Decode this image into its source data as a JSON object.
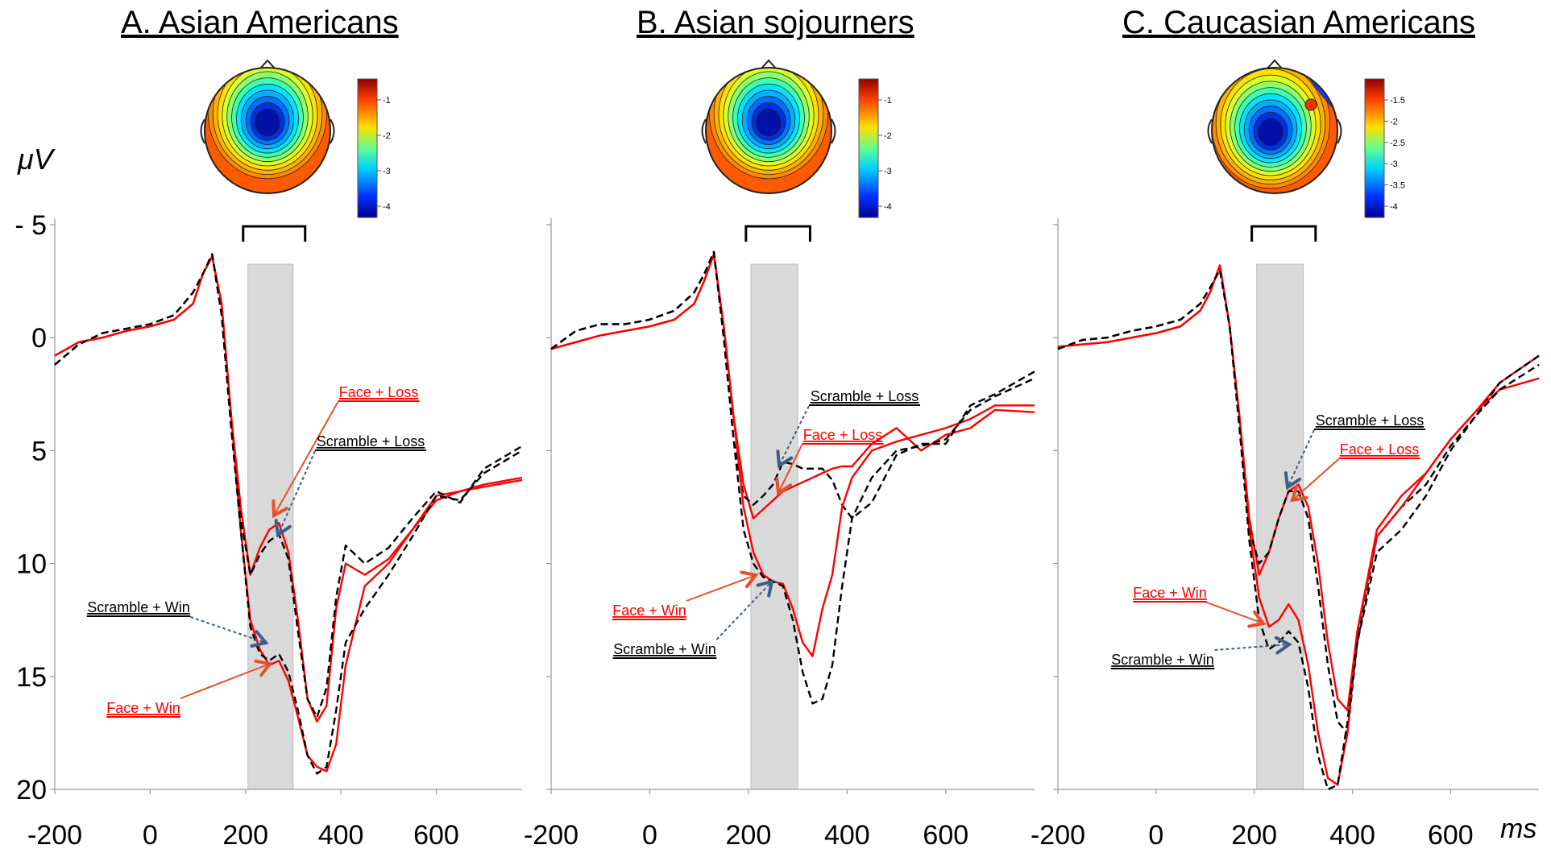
{
  "figure": {
    "y_unit": "μV",
    "x_unit": "ms",
    "y_ticks": [
      "- 5",
      "0",
      "5",
      "10",
      "15",
      "20"
    ],
    "x_ticks": [
      "-200",
      "0",
      "200",
      "400",
      "600"
    ]
  },
  "colors": {
    "face": "#ff0000",
    "scramble": "#000000",
    "window": "#d9d9d9",
    "arrow_face": "#e8502a",
    "arrow_scramble": "#3f5d86"
  },
  "chart_data": [
    {
      "type": "line",
      "panel": "A",
      "title": "A. Asian Americans",
      "xlim": [
        -200,
        780
      ],
      "ylim": [
        -5,
        20
      ],
      "y_inverted": true,
      "shaded_window_ms": [
        205,
        300
      ],
      "bracket_ms": [
        195,
        325
      ],
      "scalp_map_colorbar_ticks": [
        "-1",
        "-2",
        "-3",
        "-4"
      ],
      "annotations": [
        {
          "text": "Face + Loss",
          "color": "red"
        },
        {
          "text": "Scramble + Loss",
          "color": "black"
        },
        {
          "text": "Scramble + Win",
          "color": "black"
        },
        {
          "text": "Face + Win",
          "color": "red"
        }
      ],
      "series": [
        {
          "condition": "Face + Loss",
          "color": "red",
          "dash": "solid",
          "x": [
            -200,
            -150,
            -100,
            -50,
            0,
            50,
            90,
            110,
            130,
            150,
            170,
            190,
            210,
            230,
            250,
            270,
            290,
            310,
            330,
            350,
            370,
            390,
            410,
            450,
            500,
            550,
            600,
            650,
            700,
            780
          ],
          "y": [
            0.8,
            0.2,
            0.0,
            -0.3,
            -0.5,
            -0.8,
            -1.5,
            -2.8,
            -3.6,
            -1.5,
            3.5,
            7.5,
            10.5,
            9.3,
            8.5,
            8.2,
            9.5,
            12.5,
            16.0,
            17.0,
            16.3,
            12.0,
            10.0,
            10.5,
            9.8,
            8.5,
            7.0,
            6.8,
            6.5,
            6.2
          ]
        },
        {
          "condition": "Scramble + Loss",
          "color": "black",
          "dash": "dashed",
          "x": [
            -200,
            -150,
            -100,
            -50,
            0,
            50,
            90,
            110,
            130,
            150,
            170,
            190,
            210,
            230,
            250,
            270,
            290,
            310,
            330,
            350,
            370,
            390,
            410,
            450,
            500,
            550,
            600,
            650,
            700,
            780
          ],
          "y": [
            1.2,
            0.3,
            -0.2,
            -0.4,
            -0.6,
            -1.0,
            -2.0,
            -2.8,
            -3.7,
            -1.0,
            4.0,
            8.0,
            10.5,
            9.6,
            9.0,
            8.7,
            9.8,
            13.0,
            16.0,
            16.8,
            15.5,
            11.5,
            9.2,
            10.0,
            9.3,
            8.0,
            6.8,
            7.3,
            5.8,
            4.8
          ]
        },
        {
          "condition": "Face + Win",
          "color": "red",
          "dash": "solid",
          "x": [
            -200,
            -150,
            -100,
            -50,
            0,
            50,
            90,
            110,
            130,
            150,
            170,
            190,
            210,
            230,
            250,
            270,
            290,
            310,
            330,
            350,
            370,
            390,
            410,
            450,
            500,
            550,
            600,
            650,
            700,
            780
          ],
          "y": [
            0.8,
            0.2,
            0.0,
            -0.3,
            -0.5,
            -0.8,
            -1.5,
            -2.8,
            -3.6,
            -1.5,
            3.5,
            8.5,
            12.5,
            13.8,
            14.5,
            14.3,
            15.2,
            16.8,
            18.5,
            19.0,
            19.2,
            18.0,
            14.5,
            11.0,
            10.0,
            8.5,
            7.2,
            6.8,
            6.6,
            6.3
          ]
        },
        {
          "condition": "Scramble + Win",
          "color": "black",
          "dash": "dashed",
          "x": [
            -200,
            -150,
            -100,
            -50,
            0,
            50,
            90,
            110,
            130,
            150,
            170,
            190,
            210,
            230,
            250,
            270,
            290,
            310,
            330,
            350,
            370,
            390,
            410,
            450,
            500,
            550,
            600,
            650,
            700,
            780
          ],
          "y": [
            1.2,
            0.3,
            -0.2,
            -0.4,
            -0.6,
            -1.0,
            -2.0,
            -2.8,
            -3.7,
            -1.0,
            4.0,
            8.5,
            12.8,
            14.0,
            14.3,
            14.0,
            14.8,
            16.5,
            18.5,
            19.3,
            19.0,
            16.5,
            13.5,
            12.0,
            10.5,
            8.8,
            7.0,
            7.2,
            6.0,
            5.0
          ]
        }
      ]
    },
    {
      "type": "line",
      "panel": "B",
      "title": "B. Asian sojourners",
      "xlim": [
        -200,
        780
      ],
      "ylim": [
        -5,
        20
      ],
      "y_inverted": true,
      "shaded_window_ms": [
        205,
        300
      ],
      "bracket_ms": [
        195,
        325
      ],
      "scalp_map_colorbar_ticks": [
        "-1",
        "-2",
        "-3",
        "-4"
      ],
      "annotations": [
        {
          "text": "Scramble + Loss",
          "color": "black"
        },
        {
          "text": "Face + Loss",
          "color": "red"
        },
        {
          "text": "Face + Win",
          "color": "red"
        },
        {
          "text": "Scramble + Win",
          "color": "black"
        }
      ],
      "series": [
        {
          "condition": "Face + Loss",
          "color": "red",
          "dash": "solid",
          "x": [
            -200,
            -150,
            -100,
            -50,
            0,
            50,
            90,
            110,
            130,
            150,
            170,
            190,
            210,
            230,
            250,
            270,
            290,
            310,
            330,
            350,
            370,
            390,
            410,
            450,
            500,
            550,
            600,
            650,
            700,
            780
          ],
          "y": [
            0.5,
            0.2,
            -0.1,
            -0.3,
            -0.5,
            -0.8,
            -1.5,
            -2.5,
            -3.7,
            -0.5,
            3.5,
            6.5,
            8.0,
            7.6,
            7.2,
            6.8,
            6.6,
            6.4,
            6.2,
            6.0,
            5.8,
            5.7,
            5.7,
            4.7,
            4.0,
            5.0,
            4.3,
            4.0,
            3.2,
            3.3
          ]
        },
        {
          "condition": "Scramble + Loss",
          "color": "black",
          "dash": "dashed",
          "x": [
            -200,
            -150,
            -100,
            -50,
            0,
            50,
            90,
            110,
            130,
            150,
            170,
            190,
            210,
            230,
            250,
            270,
            290,
            310,
            330,
            350,
            370,
            390,
            410,
            450,
            500,
            550,
            600,
            650,
            700,
            780
          ],
          "y": [
            0.5,
            -0.3,
            -0.6,
            -0.6,
            -0.8,
            -1.2,
            -2.0,
            -2.8,
            -3.8,
            0.0,
            4.5,
            7.0,
            7.4,
            7.0,
            6.5,
            5.5,
            5.6,
            5.8,
            5.8,
            5.8,
            6.3,
            7.4,
            8.0,
            7.3,
            5.2,
            4.7,
            4.7,
            3.0,
            2.5,
            1.5
          ]
        },
        {
          "condition": "Face + Win",
          "color": "red",
          "dash": "solid",
          "x": [
            -200,
            -150,
            -100,
            -50,
            0,
            50,
            90,
            110,
            130,
            150,
            170,
            190,
            210,
            230,
            250,
            270,
            290,
            310,
            330,
            350,
            370,
            390,
            410,
            450,
            500,
            550,
            600,
            650,
            700,
            780
          ],
          "y": [
            0.5,
            0.2,
            -0.1,
            -0.3,
            -0.5,
            -0.8,
            -1.5,
            -2.5,
            -3.7,
            -0.5,
            3.5,
            7.5,
            9.5,
            10.5,
            10.8,
            10.9,
            12.0,
            13.5,
            14.1,
            12.0,
            10.5,
            7.5,
            6.2,
            5.0,
            4.6,
            4.3,
            4.0,
            3.6,
            3.0,
            3.0
          ]
        },
        {
          "condition": "Scramble + Win",
          "color": "black",
          "dash": "dashed",
          "x": [
            -200,
            -150,
            -100,
            -50,
            0,
            50,
            90,
            110,
            130,
            150,
            170,
            190,
            210,
            230,
            250,
            270,
            290,
            310,
            330,
            350,
            370,
            390,
            410,
            450,
            500,
            550,
            600,
            650,
            700,
            780
          ],
          "y": [
            0.5,
            -0.3,
            -0.6,
            -0.6,
            -0.8,
            -1.2,
            -2.0,
            -2.8,
            -3.8,
            0.0,
            4.5,
            8.5,
            10.0,
            10.6,
            10.8,
            11.0,
            12.5,
            14.8,
            16.2,
            16.0,
            14.5,
            11.0,
            8.0,
            6.2,
            5.0,
            4.8,
            4.5,
            3.2,
            2.6,
            1.8
          ]
        }
      ]
    },
    {
      "type": "line",
      "panel": "C",
      "title": "C. Caucasian Americans",
      "xlim": [
        -200,
        780
      ],
      "ylim": [
        -5,
        20
      ],
      "y_inverted": true,
      "shaded_window_ms": [
        205,
        300
      ],
      "bracket_ms": [
        195,
        325
      ],
      "scalp_map_colorbar_ticks": [
        "-1.5",
        "-2",
        "-2.5",
        "-3",
        "-3.5",
        "-4"
      ],
      "annotations": [
        {
          "text": "Scramble + Loss",
          "color": "black"
        },
        {
          "text": "Face + Loss",
          "color": "red"
        },
        {
          "text": "Face + Win",
          "color": "red"
        },
        {
          "text": "Scramble + Win",
          "color": "black"
        }
      ],
      "series": [
        {
          "condition": "Face + Loss",
          "color": "red",
          "dash": "solid",
          "x": [
            -200,
            -150,
            -100,
            -50,
            0,
            50,
            90,
            110,
            130,
            150,
            170,
            190,
            210,
            230,
            250,
            270,
            290,
            310,
            330,
            350,
            370,
            390,
            410,
            450,
            500,
            550,
            600,
            650,
            700,
            780
          ],
          "y": [
            0.4,
            0.3,
            0.2,
            0.0,
            -0.2,
            -0.5,
            -1.2,
            -2.0,
            -3.2,
            -0.5,
            3.5,
            8.0,
            10.5,
            9.5,
            8.0,
            6.8,
            6.5,
            7.5,
            10.0,
            13.5,
            16.0,
            16.5,
            13.0,
            8.5,
            7.0,
            6.0,
            4.5,
            3.3,
            2.0,
            0.8
          ]
        },
        {
          "condition": "Scramble + Loss",
          "color": "black",
          "dash": "dashed",
          "x": [
            -200,
            -150,
            -100,
            -50,
            0,
            50,
            90,
            110,
            130,
            150,
            170,
            190,
            210,
            230,
            250,
            270,
            290,
            310,
            330,
            350,
            370,
            390,
            410,
            450,
            500,
            550,
            600,
            650,
            700,
            780
          ],
          "y": [
            0.5,
            0.1,
            0.0,
            -0.3,
            -0.5,
            -0.8,
            -1.5,
            -2.2,
            -3.0,
            -0.5,
            4.0,
            8.5,
            10.0,
            9.5,
            8.0,
            6.8,
            6.8,
            8.0,
            11.0,
            14.5,
            17.0,
            17.5,
            13.5,
            8.8,
            7.5,
            6.5,
            4.8,
            3.5,
            2.0,
            0.8
          ]
        },
        {
          "condition": "Face + Win",
          "color": "red",
          "dash": "solid",
          "x": [
            -200,
            -150,
            -100,
            -50,
            0,
            50,
            90,
            110,
            130,
            150,
            170,
            190,
            210,
            230,
            250,
            270,
            290,
            310,
            330,
            350,
            370,
            390,
            410,
            450,
            500,
            550,
            600,
            650,
            700,
            780
          ],
          "y": [
            0.4,
            0.3,
            0.2,
            0.0,
            -0.2,
            -0.5,
            -1.2,
            -2.0,
            -3.2,
            -0.5,
            3.5,
            8.5,
            11.5,
            12.8,
            12.5,
            11.8,
            12.5,
            14.5,
            17.5,
            19.5,
            19.8,
            17.5,
            13.0,
            8.8,
            7.5,
            6.0,
            4.5,
            3.3,
            2.3,
            1.8
          ]
        },
        {
          "condition": "Scramble + Win",
          "color": "black",
          "dash": "dashed",
          "x": [
            -200,
            -150,
            -100,
            -50,
            0,
            50,
            90,
            110,
            130,
            150,
            170,
            190,
            210,
            230,
            250,
            270,
            290,
            310,
            330,
            350,
            370,
            390,
            410,
            450,
            500,
            550,
            600,
            650,
            700,
            780
          ],
          "y": [
            0.5,
            0.1,
            0.0,
            -0.3,
            -0.5,
            -0.8,
            -1.5,
            -2.2,
            -3.0,
            -0.5,
            4.0,
            9.0,
            12.5,
            13.8,
            13.5,
            13.0,
            13.5,
            15.5,
            18.5,
            20.0,
            19.8,
            17.0,
            13.5,
            9.5,
            8.5,
            7.0,
            5.0,
            3.5,
            2.3,
            1.2
          ]
        }
      ]
    }
  ]
}
